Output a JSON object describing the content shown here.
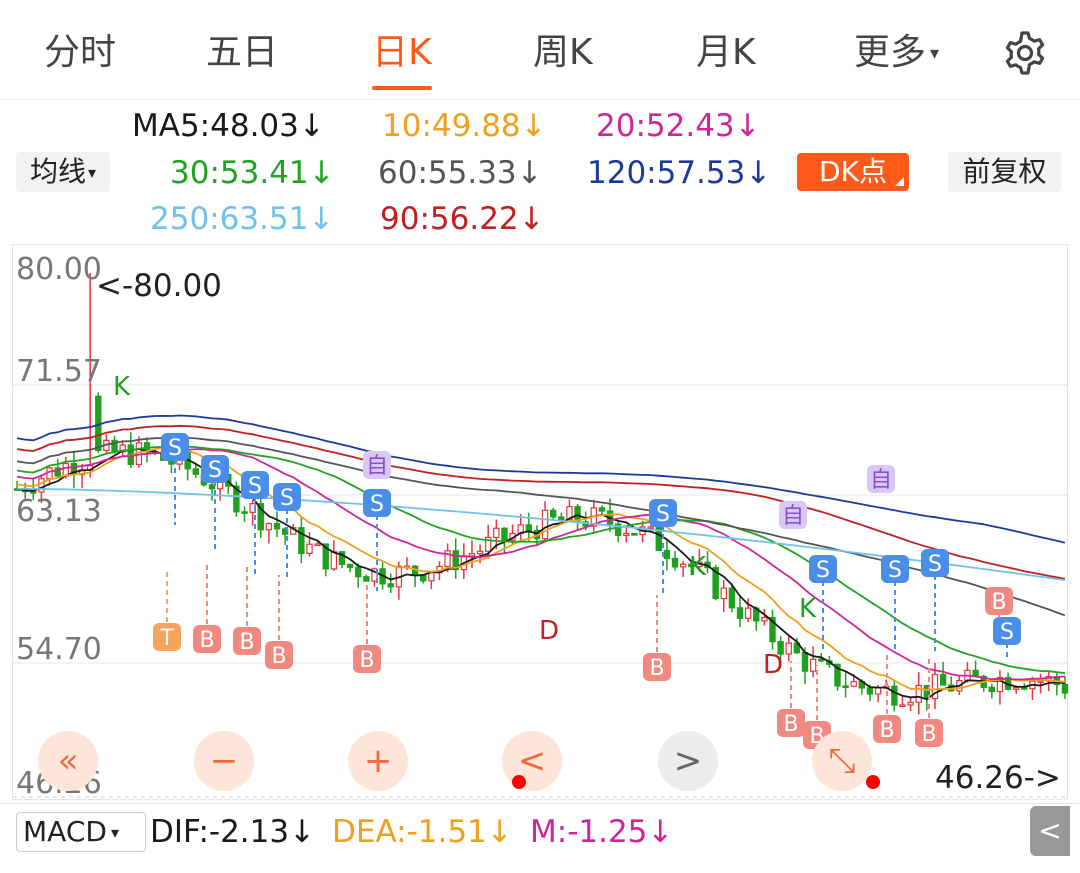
{
  "tabs": [
    {
      "label": "分时",
      "active": false
    },
    {
      "label": "五日",
      "active": false
    },
    {
      "label": "日K",
      "active": true
    },
    {
      "label": "周K",
      "active": false
    },
    {
      "label": "月K",
      "active": false
    },
    {
      "label": "更多",
      "active": false
    }
  ],
  "settings_icon": "gear-icon",
  "more_caret": "▾",
  "ma_lines": [
    {
      "label": "MA5:48.03↓",
      "color": "#1a1a1a"
    },
    {
      "label": "10:49.88↓",
      "color": "#f0a01e"
    },
    {
      "label": "20:52.43↓",
      "color": "#d0249a"
    },
    {
      "label": "30:53.41↓",
      "color": "#22a322"
    },
    {
      "label": "60:55.33↓",
      "color": "#555555"
    },
    {
      "label": "120:57.53↓",
      "color": "#1d3a9a"
    },
    {
      "label": "250:63.51↓",
      "color": "#6fc3ea"
    },
    {
      "label": "90:56.22↓",
      "color": "#c02020"
    }
  ],
  "buttons": {
    "avg_line": "均线",
    "dk_point": "DK点",
    "fq": "前复权"
  },
  "y_axis": [
    "80.00",
    "71.57",
    "63.13",
    "54.70",
    "46.26"
  ],
  "high_label": "<-80.00",
  "low_label": "46.26->",
  "controls": {
    "rewind": "«",
    "zoom_out": "−",
    "zoom_in": "+",
    "prev": "<",
    "next": ">",
    "expand": "⤡"
  },
  "macd": {
    "selector": "MACD",
    "dif": "DIF:-2.13↓",
    "dea": "DEA:-1.51↓",
    "m": "M:-1.25↓",
    "colors": {
      "dif": "#1a1a1a",
      "dea": "#f0a01e",
      "m": "#d0249a"
    }
  },
  "side_toggle": "<",
  "signal_marks": {
    "buy": "B",
    "sell": "S",
    "self": "自",
    "t": "T",
    "k": "K",
    "d": "D"
  },
  "colors": {
    "accent": "#ff5a1a",
    "up": "#e5373d",
    "down": "#1fa01f",
    "buy_tag": "#f08a80",
    "sell_tag": "#4a8ee8",
    "self_tag": "#d9c8f5"
  }
}
